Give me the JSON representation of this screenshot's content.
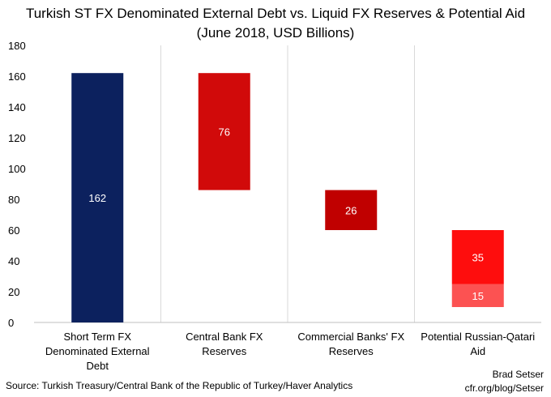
{
  "chart_data": {
    "type": "bar",
    "title": "Turkish ST FX Denominated External Debt vs.  Liquid FX Reserves &  Potential Aid",
    "subtitle": "(June 2018, USD Billions)",
    "categories": [
      "Short Term FX Denominated External Debt",
      "Central Bank FX Reserves",
      "Commercial Banks' FX Reserves",
      "Potential Russian-Qatari Aid"
    ],
    "category_lines": [
      [
        "Short Term FX",
        "Denominated External",
        "Debt"
      ],
      [
        "Central Bank FX",
        "Reserves"
      ],
      [
        "Commercial Banks' FX",
        "Reserves"
      ],
      [
        "Potential Russian-Qatari",
        "Aid"
      ]
    ],
    "bars": [
      {
        "category": 0,
        "base": 0,
        "value": 162,
        "label": "162",
        "color": "#0c215e"
      },
      {
        "category": 1,
        "base": 86,
        "value": 76,
        "label": "76",
        "color": "#d10a0a"
      },
      {
        "category": 2,
        "base": 60,
        "value": 26,
        "label": "26",
        "color": "#c00000"
      },
      {
        "category": 3,
        "base": 25,
        "value": 35,
        "label": "35",
        "color": "#fe0d0d"
      },
      {
        "category": 3,
        "base": 10,
        "value": 15,
        "label": "15",
        "color": "#fc5252"
      }
    ],
    "yticks": [
      0,
      20,
      40,
      60,
      80,
      100,
      120,
      140,
      160,
      180
    ],
    "ylim": [
      0,
      180
    ],
    "grid": "vertical category separators"
  },
  "source": "Source: Turkish Treasury/Central Bank of the Republic of Turkey/Haver Analytics",
  "credit_name": "Brad Setser",
  "credit_url": "cfr.org/blog/Setser"
}
